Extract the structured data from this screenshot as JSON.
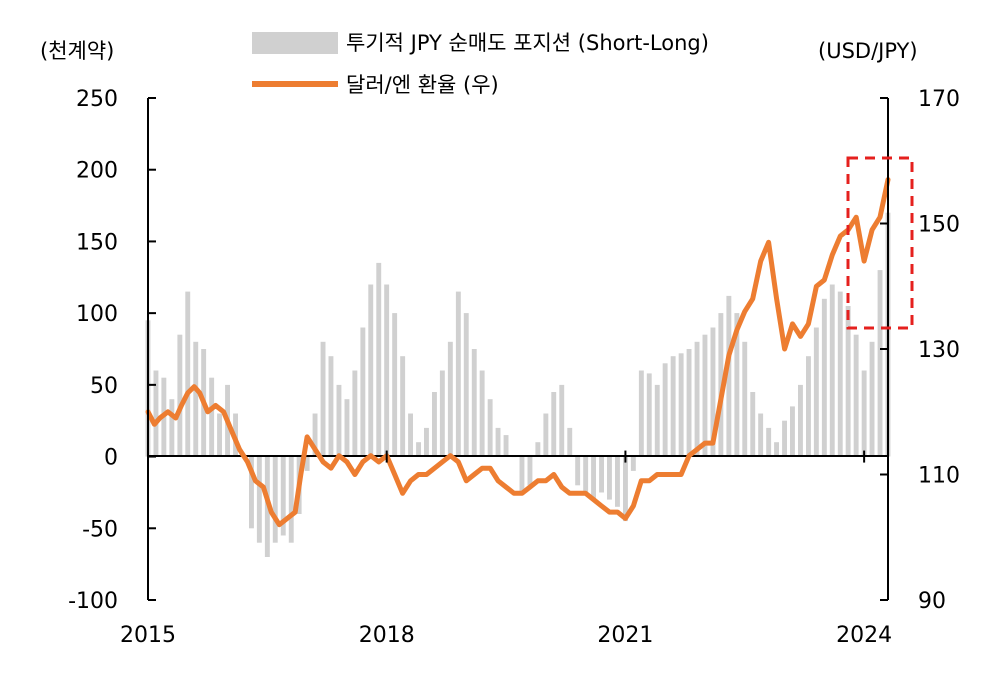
{
  "chart_data": {
    "type": "bar+line",
    "left_axis_unit": "(천계약)",
    "right_axis_unit": "(USD/JPY)",
    "left_ticks": [
      "250",
      "200",
      "150",
      "100",
      "50",
      "0",
      "-50",
      "-100"
    ],
    "right_ticks": [
      "170",
      "150",
      "130",
      "110",
      "90"
    ],
    "x_ticks": [
      "2015",
      "2018",
      "2021",
      "2024"
    ],
    "ylim_left": [
      -100,
      250
    ],
    "ylim_right": [
      90,
      170
    ],
    "xlim": [
      2015.0,
      2024.3
    ],
    "grid": false,
    "highlight_box": {
      "x_range": [
        2023.85,
        2024.35
      ],
      "y_range_right": [
        133,
        160
      ],
      "color": "#e5201e",
      "style": "dashed"
    },
    "series": [
      {
        "name": "투기적 JPY 순매도 포지션 (Short-Long)",
        "type": "bar",
        "axis": "left",
        "color": "#d0d0d0",
        "points": [
          [
            2015.0,
            95
          ],
          [
            2015.1,
            60
          ],
          [
            2015.2,
            55
          ],
          [
            2015.3,
            40
          ],
          [
            2015.4,
            85
          ],
          [
            2015.5,
            115
          ],
          [
            2015.6,
            80
          ],
          [
            2015.7,
            75
          ],
          [
            2015.8,
            55
          ],
          [
            2015.9,
            30
          ],
          [
            2016.0,
            50
          ],
          [
            2016.1,
            30
          ],
          [
            2016.2,
            0
          ],
          [
            2016.3,
            -50
          ],
          [
            2016.4,
            -60
          ],
          [
            2016.5,
            -70
          ],
          [
            2016.6,
            -60
          ],
          [
            2016.7,
            -55
          ],
          [
            2016.8,
            -60
          ],
          [
            2016.9,
            -40
          ],
          [
            2017.0,
            -10
          ],
          [
            2017.1,
            30
          ],
          [
            2017.2,
            80
          ],
          [
            2017.3,
            70
          ],
          [
            2017.4,
            50
          ],
          [
            2017.5,
            40
          ],
          [
            2017.6,
            60
          ],
          [
            2017.7,
            90
          ],
          [
            2017.8,
            120
          ],
          [
            2017.9,
            135
          ],
          [
            2018.0,
            120
          ],
          [
            2018.1,
            100
          ],
          [
            2018.2,
            70
          ],
          [
            2018.3,
            30
          ],
          [
            2018.4,
            10
          ],
          [
            2018.5,
            20
          ],
          [
            2018.6,
            45
          ],
          [
            2018.7,
            60
          ],
          [
            2018.8,
            80
          ],
          [
            2018.9,
            115
          ],
          [
            2019.0,
            100
          ],
          [
            2019.1,
            75
          ],
          [
            2019.2,
            60
          ],
          [
            2019.3,
            40
          ],
          [
            2019.4,
            20
          ],
          [
            2019.5,
            15
          ],
          [
            2019.6,
            0
          ],
          [
            2019.7,
            -25
          ],
          [
            2019.8,
            -20
          ],
          [
            2019.9,
            10
          ],
          [
            2020.0,
            30
          ],
          [
            2020.1,
            45
          ],
          [
            2020.2,
            50
          ],
          [
            2020.3,
            20
          ],
          [
            2020.4,
            -20
          ],
          [
            2020.5,
            -25
          ],
          [
            2020.6,
            -30
          ],
          [
            2020.7,
            -25
          ],
          [
            2020.8,
            -30
          ],
          [
            2020.9,
            -35
          ],
          [
            2021.0,
            -45
          ],
          [
            2021.1,
            -10
          ],
          [
            2021.2,
            60
          ],
          [
            2021.3,
            58
          ],
          [
            2021.4,
            50
          ],
          [
            2021.5,
            65
          ],
          [
            2021.6,
            70
          ],
          [
            2021.7,
            72
          ],
          [
            2021.8,
            75
          ],
          [
            2021.9,
            80
          ],
          [
            2022.0,
            85
          ],
          [
            2022.1,
            90
          ],
          [
            2022.2,
            100
          ],
          [
            2022.3,
            112
          ],
          [
            2022.4,
            100
          ],
          [
            2022.5,
            80
          ],
          [
            2022.6,
            45
          ],
          [
            2022.7,
            30
          ],
          [
            2022.8,
            20
          ],
          [
            2022.9,
            10
          ],
          [
            2023.0,
            25
          ],
          [
            2023.1,
            35
          ],
          [
            2023.2,
            50
          ],
          [
            2023.3,
            70
          ],
          [
            2023.4,
            90
          ],
          [
            2023.5,
            110
          ],
          [
            2023.6,
            120
          ],
          [
            2023.7,
            115
          ],
          [
            2023.8,
            105
          ],
          [
            2023.9,
            85
          ],
          [
            2024.0,
            60
          ],
          [
            2024.1,
            80
          ],
          [
            2024.2,
            130
          ],
          [
            2024.3,
            170
          ]
        ]
      },
      {
        "name": "달러/엔 환율 (우)",
        "type": "line",
        "axis": "right",
        "color": "#ed7d31",
        "points": [
          [
            2015.0,
            120
          ],
          [
            2015.08,
            118
          ],
          [
            2015.15,
            119
          ],
          [
            2015.25,
            120
          ],
          [
            2015.35,
            119
          ],
          [
            2015.42,
            121
          ],
          [
            2015.5,
            123
          ],
          [
            2015.58,
            124
          ],
          [
            2015.65,
            123
          ],
          [
            2015.75,
            120
          ],
          [
            2015.85,
            121
          ],
          [
            2015.95,
            120
          ],
          [
            2016.05,
            117
          ],
          [
            2016.15,
            114
          ],
          [
            2016.25,
            112
          ],
          [
            2016.35,
            109
          ],
          [
            2016.45,
            108
          ],
          [
            2016.55,
            104
          ],
          [
            2016.65,
            102
          ],
          [
            2016.75,
            103
          ],
          [
            2016.85,
            104
          ],
          [
            2016.92,
            110
          ],
          [
            2017.0,
            116
          ],
          [
            2017.1,
            114
          ],
          [
            2017.2,
            112
          ],
          [
            2017.3,
            111
          ],
          [
            2017.4,
            113
          ],
          [
            2017.5,
            112
          ],
          [
            2017.6,
            110
          ],
          [
            2017.7,
            112
          ],
          [
            2017.8,
            113
          ],
          [
            2017.9,
            112
          ],
          [
            2018.0,
            113
          ],
          [
            2018.1,
            110
          ],
          [
            2018.2,
            107
          ],
          [
            2018.3,
            109
          ],
          [
            2018.4,
            110
          ],
          [
            2018.5,
            110
          ],
          [
            2018.6,
            111
          ],
          [
            2018.7,
            112
          ],
          [
            2018.8,
            113
          ],
          [
            2018.9,
            112
          ],
          [
            2019.0,
            109
          ],
          [
            2019.1,
            110
          ],
          [
            2019.2,
            111
          ],
          [
            2019.3,
            111
          ],
          [
            2019.4,
            109
          ],
          [
            2019.5,
            108
          ],
          [
            2019.6,
            107
          ],
          [
            2019.7,
            107
          ],
          [
            2019.8,
            108
          ],
          [
            2019.9,
            109
          ],
          [
            2020.0,
            109
          ],
          [
            2020.1,
            110
          ],
          [
            2020.2,
            108
          ],
          [
            2020.3,
            107
          ],
          [
            2020.4,
            107
          ],
          [
            2020.5,
            107
          ],
          [
            2020.6,
            106
          ],
          [
            2020.7,
            105
          ],
          [
            2020.8,
            104
          ],
          [
            2020.9,
            104
          ],
          [
            2021.0,
            103
          ],
          [
            2021.1,
            105
          ],
          [
            2021.2,
            109
          ],
          [
            2021.3,
            109
          ],
          [
            2021.4,
            110
          ],
          [
            2021.5,
            110
          ],
          [
            2021.6,
            110
          ],
          [
            2021.7,
            110
          ],
          [
            2021.8,
            113
          ],
          [
            2021.9,
            114
          ],
          [
            2022.0,
            115
          ],
          [
            2022.1,
            115
          ],
          [
            2022.2,
            122
          ],
          [
            2022.3,
            129
          ],
          [
            2022.4,
            133
          ],
          [
            2022.5,
            136
          ],
          [
            2022.6,
            138
          ],
          [
            2022.7,
            144
          ],
          [
            2022.8,
            147
          ],
          [
            2022.9,
            138
          ],
          [
            2023.0,
            130
          ],
          [
            2023.1,
            134
          ],
          [
            2023.2,
            132
          ],
          [
            2023.3,
            134
          ],
          [
            2023.4,
            140
          ],
          [
            2023.5,
            141
          ],
          [
            2023.6,
            145
          ],
          [
            2023.7,
            148
          ],
          [
            2023.8,
            149
          ],
          [
            2023.9,
            151
          ],
          [
            2024.0,
            144
          ],
          [
            2024.1,
            149
          ],
          [
            2024.2,
            151
          ],
          [
            2024.3,
            157
          ]
        ]
      }
    ]
  }
}
